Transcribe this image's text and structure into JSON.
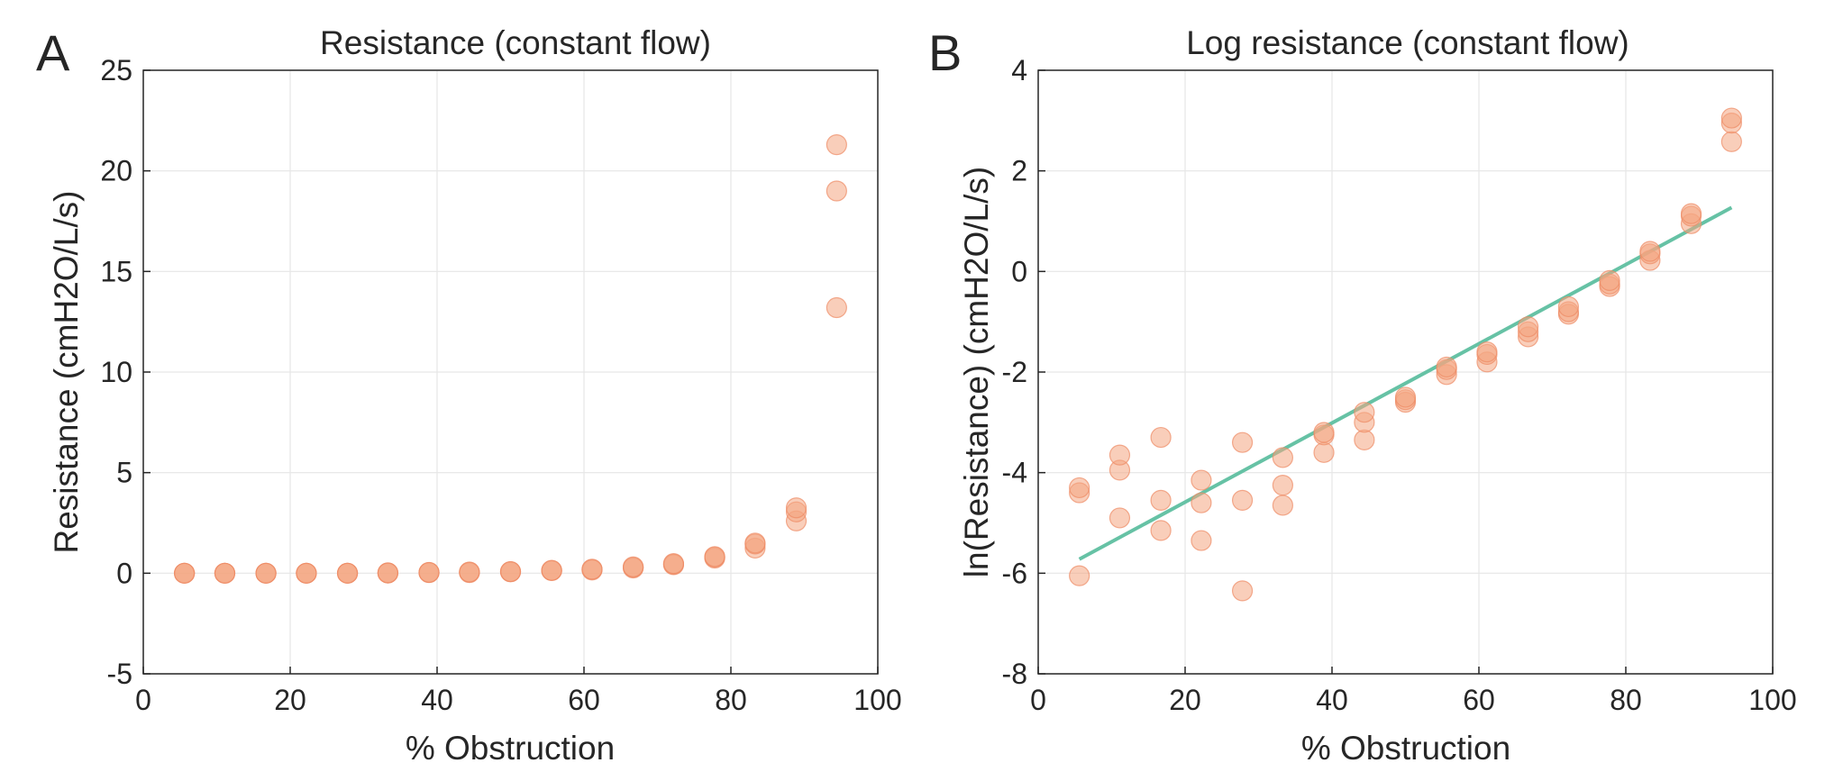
{
  "colors": {
    "marker_fill": "#f4a582",
    "marker_edge": "#ee8a64",
    "fit_line": "#66c2a5",
    "grid": "#e6e6e6",
    "axis": "#262626"
  },
  "chart_data": [
    {
      "type": "scatter",
      "panel_letter": "A",
      "title": "Resistance (constant flow)",
      "xlabel": "% Obstruction",
      "ylabel": "Resistance (cmH2O/L/s)",
      "xlim": [
        0,
        100
      ],
      "ylim": [
        -5,
        25
      ],
      "xticks": [
        0,
        20,
        40,
        60,
        80,
        100
      ],
      "yticks": [
        -5,
        0,
        5,
        10,
        15,
        20,
        25
      ],
      "xtick_labels": [
        "0",
        "20",
        "40",
        "60",
        "80",
        "100"
      ],
      "ytick_labels": [
        "-5",
        "0",
        "5",
        "10",
        "15",
        "20",
        "25"
      ],
      "grid": true,
      "marker_alpha": 0.55,
      "points": [
        {
          "x": 5.6,
          "y": 0.0
        },
        {
          "x": 5.6,
          "y": 0.0
        },
        {
          "x": 5.6,
          "y": 0.0
        },
        {
          "x": 11.1,
          "y": 0.0
        },
        {
          "x": 11.1,
          "y": 0.0
        },
        {
          "x": 11.1,
          "y": 0.0
        },
        {
          "x": 16.7,
          "y": 0.0
        },
        {
          "x": 16.7,
          "y": 0.0
        },
        {
          "x": 16.7,
          "y": 0.0
        },
        {
          "x": 22.2,
          "y": 0.0
        },
        {
          "x": 22.2,
          "y": 0.0
        },
        {
          "x": 22.2,
          "y": 0.0
        },
        {
          "x": 27.8,
          "y": 0.0
        },
        {
          "x": 27.8,
          "y": 0.0
        },
        {
          "x": 27.8,
          "y": 0.0
        },
        {
          "x": 33.3,
          "y": 0.01
        },
        {
          "x": 33.3,
          "y": 0.01
        },
        {
          "x": 33.3,
          "y": 0.02
        },
        {
          "x": 38.9,
          "y": 0.03
        },
        {
          "x": 38.9,
          "y": 0.04
        },
        {
          "x": 38.9,
          "y": 0.04
        },
        {
          "x": 44.4,
          "y": 0.03
        },
        {
          "x": 44.4,
          "y": 0.05
        },
        {
          "x": 44.4,
          "y": 0.06
        },
        {
          "x": 50.0,
          "y": 0.07
        },
        {
          "x": 50.0,
          "y": 0.08
        },
        {
          "x": 50.0,
          "y": 0.08
        },
        {
          "x": 55.6,
          "y": 0.13
        },
        {
          "x": 55.6,
          "y": 0.14
        },
        {
          "x": 55.6,
          "y": 0.14
        },
        {
          "x": 61.1,
          "y": 0.16
        },
        {
          "x": 61.1,
          "y": 0.19
        },
        {
          "x": 61.1,
          "y": 0.2
        },
        {
          "x": 66.7,
          "y": 0.26
        },
        {
          "x": 66.7,
          "y": 0.29
        },
        {
          "x": 66.7,
          "y": 0.32
        },
        {
          "x": 72.2,
          "y": 0.42
        },
        {
          "x": 72.2,
          "y": 0.45
        },
        {
          "x": 72.2,
          "y": 0.48
        },
        {
          "x": 77.8,
          "y": 0.75
        },
        {
          "x": 77.8,
          "y": 0.8
        },
        {
          "x": 77.8,
          "y": 0.83
        },
        {
          "x": 83.3,
          "y": 1.25
        },
        {
          "x": 83.3,
          "y": 1.45
        },
        {
          "x": 83.3,
          "y": 1.5
        },
        {
          "x": 88.9,
          "y": 2.6
        },
        {
          "x": 88.9,
          "y": 3.05
        },
        {
          "x": 88.9,
          "y": 3.25
        },
        {
          "x": 94.4,
          "y": 13.2
        },
        {
          "x": 94.4,
          "y": 19.0
        },
        {
          "x": 94.4,
          "y": 21.3
        }
      ]
    },
    {
      "type": "scatter",
      "panel_letter": "B",
      "title": "Log resistance (constant flow)",
      "xlabel": "% Obstruction",
      "ylabel": "ln(Resistance) (cmH2O/L/s)",
      "xlim": [
        0,
        100
      ],
      "ylim": [
        -8,
        4
      ],
      "xticks": [
        0,
        20,
        40,
        60,
        80,
        100
      ],
      "yticks": [
        -8,
        -6,
        -4,
        -2,
        0,
        2,
        4
      ],
      "xtick_labels": [
        "0",
        "20",
        "40",
        "60",
        "80",
        "100"
      ],
      "ytick_labels": [
        "-8",
        "-6",
        "-4",
        "-2",
        "0",
        "2",
        "4"
      ],
      "grid": true,
      "marker_alpha": 0.55,
      "points": [
        {
          "x": 5.6,
          "y": -6.05
        },
        {
          "x": 5.6,
          "y": -4.4
        },
        {
          "x": 5.6,
          "y": -4.3
        },
        {
          "x": 11.1,
          "y": -4.9
        },
        {
          "x": 11.1,
          "y": -3.95
        },
        {
          "x": 11.1,
          "y": -3.65
        },
        {
          "x": 16.7,
          "y": -5.15
        },
        {
          "x": 16.7,
          "y": -4.55
        },
        {
          "x": 16.7,
          "y": -3.3
        },
        {
          "x": 22.2,
          "y": -5.35
        },
        {
          "x": 22.2,
          "y": -4.6
        },
        {
          "x": 22.2,
          "y": -4.15
        },
        {
          "x": 27.8,
          "y": -6.35
        },
        {
          "x": 27.8,
          "y": -4.55
        },
        {
          "x": 27.8,
          "y": -3.4
        },
        {
          "x": 33.3,
          "y": -4.65
        },
        {
          "x": 33.3,
          "y": -4.25
        },
        {
          "x": 33.3,
          "y": -3.7
        },
        {
          "x": 38.9,
          "y": -3.6
        },
        {
          "x": 38.9,
          "y": -3.25
        },
        {
          "x": 38.9,
          "y": -3.2
        },
        {
          "x": 44.4,
          "y": -3.35
        },
        {
          "x": 44.4,
          "y": -3.0
        },
        {
          "x": 44.4,
          "y": -2.8
        },
        {
          "x": 50.0,
          "y": -2.6
        },
        {
          "x": 50.0,
          "y": -2.55
        },
        {
          "x": 50.0,
          "y": -2.5
        },
        {
          "x": 55.6,
          "y": -2.05
        },
        {
          "x": 55.6,
          "y": -1.95
        },
        {
          "x": 55.6,
          "y": -1.9
        },
        {
          "x": 61.1,
          "y": -1.8
        },
        {
          "x": 61.1,
          "y": -1.65
        },
        {
          "x": 61.1,
          "y": -1.6
        },
        {
          "x": 66.7,
          "y": -1.3
        },
        {
          "x": 66.7,
          "y": -1.2
        },
        {
          "x": 66.7,
          "y": -1.1
        },
        {
          "x": 72.2,
          "y": -0.85
        },
        {
          "x": 72.2,
          "y": -0.8
        },
        {
          "x": 72.2,
          "y": -0.7
        },
        {
          "x": 77.8,
          "y": -0.3
        },
        {
          "x": 77.8,
          "y": -0.25
        },
        {
          "x": 77.8,
          "y": -0.18
        },
        {
          "x": 83.3,
          "y": 0.22
        },
        {
          "x": 83.3,
          "y": 0.35
        },
        {
          "x": 83.3,
          "y": 0.4
        },
        {
          "x": 88.9,
          "y": 0.95
        },
        {
          "x": 88.9,
          "y": 1.1
        },
        {
          "x": 88.9,
          "y": 1.15
        },
        {
          "x": 94.4,
          "y": 2.58
        },
        {
          "x": 94.4,
          "y": 2.95
        },
        {
          "x": 94.4,
          "y": 3.05
        }
      ],
      "fit_line": {
        "x": [
          5.6,
          94.4
        ],
        "y": [
          -5.72,
          1.27
        ]
      }
    }
  ]
}
